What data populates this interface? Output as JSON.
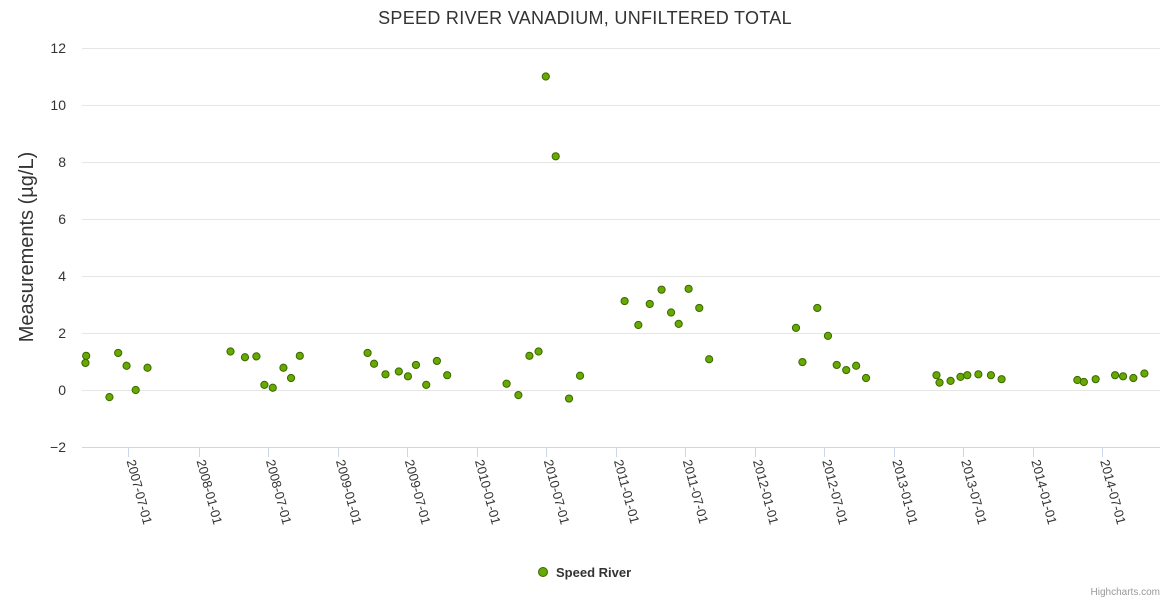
{
  "chart_data": {
    "type": "scatter",
    "title": "SPEED RIVER VANADIUM, UNFILTERED TOTAL",
    "xlabel": "",
    "ylabel": "Measurements (µg/L)",
    "ylim": [
      -2,
      12
    ],
    "yticks": [
      -2,
      0,
      2,
      4,
      6,
      8,
      10,
      12
    ],
    "xlim": [
      "2007-03-01",
      "2014-11-30"
    ],
    "xticks": [
      "2007-07-01",
      "2008-01-01",
      "2008-07-01",
      "2009-01-01",
      "2009-07-01",
      "2010-01-01",
      "2010-07-01",
      "2011-01-01",
      "2011-07-01",
      "2012-01-01",
      "2012-07-01",
      "2013-01-01",
      "2013-07-01",
      "2014-01-01",
      "2014-07-01"
    ],
    "grid": true,
    "legend_position": "bottom-center",
    "series": [
      {
        "name": "Speed River",
        "color": "#66aa00",
        "points": [
          {
            "x": "2007-03-10",
            "y": 0.95
          },
          {
            "x": "2007-03-12",
            "y": 1.2
          },
          {
            "x": "2007-05-12",
            "y": -0.25
          },
          {
            "x": "2007-06-04",
            "y": 1.3
          },
          {
            "x": "2007-06-26",
            "y": 0.85
          },
          {
            "x": "2007-07-20",
            "y": 0.0
          },
          {
            "x": "2007-08-20",
            "y": 0.78
          },
          {
            "x": "2008-03-25",
            "y": 1.35
          },
          {
            "x": "2008-05-02",
            "y": 1.15
          },
          {
            "x": "2008-06-01",
            "y": 1.18
          },
          {
            "x": "2008-06-22",
            "y": 0.18
          },
          {
            "x": "2008-07-14",
            "y": 0.08
          },
          {
            "x": "2008-08-11",
            "y": 0.78
          },
          {
            "x": "2008-08-31",
            "y": 0.42
          },
          {
            "x": "2008-09-23",
            "y": 1.2
          },
          {
            "x": "2009-03-20",
            "y": 1.3
          },
          {
            "x": "2009-04-06",
            "y": 0.92
          },
          {
            "x": "2009-05-06",
            "y": 0.55
          },
          {
            "x": "2009-06-10",
            "y": 0.65
          },
          {
            "x": "2009-07-04",
            "y": 0.48
          },
          {
            "x": "2009-07-25",
            "y": 0.88
          },
          {
            "x": "2009-08-21",
            "y": 0.18
          },
          {
            "x": "2009-09-18",
            "y": 1.02
          },
          {
            "x": "2009-10-15",
            "y": 0.52
          },
          {
            "x": "2010-03-20",
            "y": 0.22
          },
          {
            "x": "2010-04-20",
            "y": -0.18
          },
          {
            "x": "2010-05-19",
            "y": 1.2
          },
          {
            "x": "2010-06-12",
            "y": 1.35
          },
          {
            "x": "2010-07-01",
            "y": 11.0
          },
          {
            "x": "2010-07-27",
            "y": 8.2
          },
          {
            "x": "2010-08-31",
            "y": -0.3
          },
          {
            "x": "2010-09-29",
            "y": 0.5
          },
          {
            "x": "2011-01-24",
            "y": 3.12
          },
          {
            "x": "2011-03-01",
            "y": 2.28
          },
          {
            "x": "2011-03-31",
            "y": 3.02
          },
          {
            "x": "2011-05-01",
            "y": 3.52
          },
          {
            "x": "2011-05-26",
            "y": 2.72
          },
          {
            "x": "2011-06-15",
            "y": 2.32
          },
          {
            "x": "2011-07-11",
            "y": 3.55
          },
          {
            "x": "2011-08-08",
            "y": 2.88
          },
          {
            "x": "2011-09-03",
            "y": 1.08
          },
          {
            "x": "2012-04-18",
            "y": 2.18
          },
          {
            "x": "2012-05-05",
            "y": 0.98
          },
          {
            "x": "2012-06-13",
            "y": 2.88
          },
          {
            "x": "2012-07-11",
            "y": 1.9
          },
          {
            "x": "2012-08-03",
            "y": 0.88
          },
          {
            "x": "2012-08-28",
            "y": 0.7
          },
          {
            "x": "2012-09-23",
            "y": 0.85
          },
          {
            "x": "2012-10-19",
            "y": 0.42
          },
          {
            "x": "2013-04-22",
            "y": 0.52
          },
          {
            "x": "2013-04-30",
            "y": 0.26
          },
          {
            "x": "2013-05-29",
            "y": 0.32
          },
          {
            "x": "2013-06-24",
            "y": 0.46
          },
          {
            "x": "2013-07-12",
            "y": 0.52
          },
          {
            "x": "2013-08-10",
            "y": 0.55
          },
          {
            "x": "2013-09-12",
            "y": 0.52
          },
          {
            "x": "2013-10-10",
            "y": 0.38
          },
          {
            "x": "2014-04-27",
            "y": 0.35
          },
          {
            "x": "2014-05-14",
            "y": 0.28
          },
          {
            "x": "2014-06-14",
            "y": 0.38
          },
          {
            "x": "2014-08-04",
            "y": 0.52
          },
          {
            "x": "2014-08-25",
            "y": 0.48
          },
          {
            "x": "2014-09-21",
            "y": 0.42
          },
          {
            "x": "2014-10-20",
            "y": 0.58
          }
        ]
      }
    ]
  },
  "legend": {
    "items": [
      {
        "label": "Speed River",
        "color": "#66aa00"
      }
    ]
  },
  "credits": "Highcharts.com"
}
